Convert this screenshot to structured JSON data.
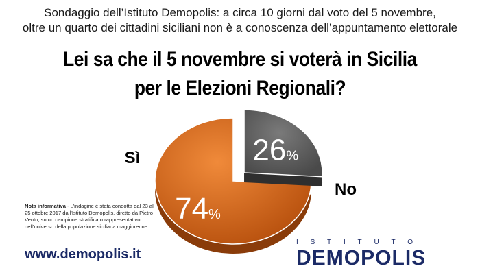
{
  "header": {
    "subtitle_line1": "Sondaggio dell’Istituto Demopolis: a circa 10 giorni dal voto del 5 novembre,",
    "subtitle_line2": "oltre un quarto dei cittadini siciliani non è a conoscenza dell’appuntamento elettorale",
    "title_line1": "Lei sa che il 5 novembre si voterà in Sicilia",
    "title_line2": "per le Elezioni Regionali?"
  },
  "chart_data": {
    "type": "pie",
    "categories": [
      "Sì",
      "No"
    ],
    "values": [
      74,
      26
    ],
    "value_labels": [
      "74",
      "26"
    ],
    "percent_sign": "%",
    "colors": [
      "#d86a1c",
      "#666666"
    ],
    "exploded": "No"
  },
  "note": {
    "label": "Nota informativa",
    "text": " - L’indagine è stata condotta dal 23 al 25 ottobre 2017 dall’Istituto Demopolis, diretto da Pietro Vento, su un campione stratificato rappresentativo dell’universo della popolazione siciliana maggiorenne."
  },
  "footer": {
    "website": "www.demopolis.it",
    "logo_top": "ISTITUTO",
    "logo_main": "DEMOPOLIS"
  },
  "colors": {
    "brand": "#1b2a66"
  }
}
